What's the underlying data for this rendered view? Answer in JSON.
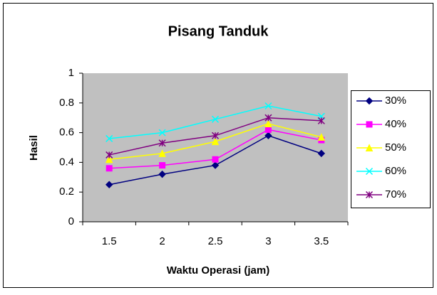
{
  "chart_data": {
    "type": "line",
    "title": "Pisang Tanduk",
    "x_label": "Waktu Operasi (jam)",
    "y_label": "Hasil",
    "categories": [
      "1.5",
      "2",
      "2.5",
      "3",
      "3.5"
    ],
    "ylim": [
      0,
      1
    ],
    "yticks": [
      0,
      0.2,
      0.4,
      0.6,
      0.8,
      1
    ],
    "grid": false,
    "legend": "right",
    "plot_background": "#c0c0c0",
    "series": [
      {
        "name": "30%",
        "color": "#000080",
        "marker": "diamond",
        "values": [
          0.25,
          0.32,
          0.38,
          0.58,
          0.46
        ]
      },
      {
        "name": "40%",
        "color": "#ff00ff",
        "marker": "square",
        "values": [
          0.36,
          0.38,
          0.42,
          0.62,
          0.55
        ]
      },
      {
        "name": "50%",
        "color": "#ffff00",
        "marker": "triangle",
        "values": [
          0.42,
          0.46,
          0.54,
          0.66,
          0.57
        ]
      },
      {
        "name": "60%",
        "color": "#00ffff",
        "marker": "x",
        "values": [
          0.56,
          0.6,
          0.69,
          0.78,
          0.71
        ]
      },
      {
        "name": "70%",
        "color": "#800080",
        "marker": "star",
        "values": [
          0.45,
          0.53,
          0.58,
          0.7,
          0.68
        ]
      }
    ]
  }
}
